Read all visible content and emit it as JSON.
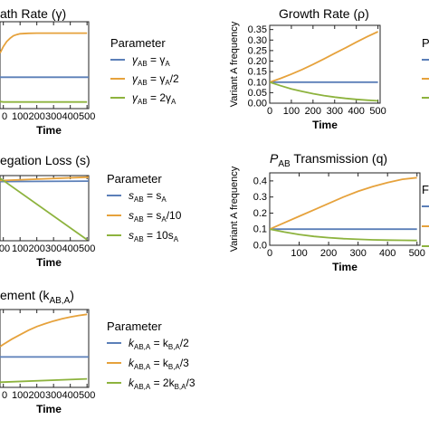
{
  "chart_data": [
    {
      "type": "line",
      "title_pre": "",
      "title": "ath Rate (γ)",
      "title_sub": "",
      "title_post": "",
      "xlabel": "Time",
      "ylabel": "",
      "xlim": [
        -20,
        510
      ],
      "ylim": [
        -0.05,
        1.0
      ],
      "xticks": [
        {
          "v": 0,
          "t": "0"
        },
        {
          "v": 100,
          "t": "100"
        },
        {
          "v": 200,
          "t": "200"
        },
        {
          "v": 300,
          "t": "300"
        },
        {
          "v": 400,
          "t": "400"
        },
        {
          "v": 500,
          "t": "500"
        }
      ],
      "yticks": [],
      "legend_title": "Parameter",
      "series": [
        {
          "color": "#5b7fb8",
          "label": [
            {
              "t": "γ",
              "s": "AB",
              "r": " = γ"
            },
            {
              "t": "",
              "s": "A",
              "r": ""
            }
          ],
          "x": [
            -20,
            510
          ],
          "y": [
            0.33,
            0.33
          ]
        },
        {
          "color": "#e6a23c",
          "label": [
            {
              "t": "γ",
              "s": "AB",
              "r": " = γ"
            },
            {
              "t": "",
              "s": "A",
              "r": "/2"
            }
          ],
          "x": [
            -20,
            0,
            20,
            40,
            60,
            80,
            100,
            150,
            200,
            300,
            400,
            500
          ],
          "y": [
            0.62,
            0.7,
            0.76,
            0.8,
            0.83,
            0.845,
            0.855,
            0.86,
            0.862,
            0.862,
            0.862,
            0.862
          ]
        },
        {
          "color": "#8db33e",
          "label": [
            {
              "t": "γ",
              "s": "AB",
              "r": " = 2γ"
            },
            {
              "t": "",
              "s": "A",
              "r": ""
            }
          ],
          "x": [
            -20,
            0,
            50,
            100,
            200,
            300,
            400,
            500
          ],
          "y": [
            0.035,
            0.03,
            0.03,
            0.03,
            0.03,
            0.03,
            0.03,
            0.03
          ]
        }
      ]
    },
    {
      "type": "line",
      "title_pre": "",
      "title": "Growth Rate (ρ)",
      "title_sub": "",
      "title_post": "",
      "xlabel": "Time",
      "ylabel": "Variant A frequency",
      "xlim": [
        0,
        510
      ],
      "ylim": [
        0,
        0.37
      ],
      "xticks": [
        {
          "v": 0,
          "t": "0"
        },
        {
          "v": 100,
          "t": "100"
        },
        {
          "v": 200,
          "t": "200"
        },
        {
          "v": 300,
          "t": "300"
        },
        {
          "v": 400,
          "t": "400"
        },
        {
          "v": 500,
          "t": "500"
        }
      ],
      "yticks": [
        {
          "v": 0.0,
          "t": "0.00"
        },
        {
          "v": 0.05,
          "t": "0.05"
        },
        {
          "v": 0.1,
          "t": "0.10"
        },
        {
          "v": 0.15,
          "t": "0.15"
        },
        {
          "v": 0.2,
          "t": "0.20"
        },
        {
          "v": 0.25,
          "t": "0.25"
        },
        {
          "v": 0.3,
          "t": "0.30"
        },
        {
          "v": 0.35,
          "t": "0.35"
        }
      ],
      "legend_title": "P",
      "series": [
        {
          "color": "#5b7fb8",
          "label": [],
          "x": [
            0,
            500
          ],
          "y": [
            0.1,
            0.1
          ]
        },
        {
          "color": "#e6a23c",
          "label": [],
          "x": [
            0,
            50,
            100,
            150,
            200,
            250,
            300,
            350,
            400,
            450,
            500
          ],
          "y": [
            0.1,
            0.118,
            0.138,
            0.16,
            0.184,
            0.21,
            0.237,
            0.263,
            0.29,
            0.316,
            0.34
          ]
        },
        {
          "color": "#8db33e",
          "label": [],
          "x": [
            0,
            50,
            100,
            150,
            200,
            250,
            300,
            350,
            400,
            450,
            500
          ],
          "y": [
            0.1,
            0.083,
            0.068,
            0.056,
            0.045,
            0.036,
            0.029,
            0.023,
            0.018,
            0.014,
            0.011
          ]
        }
      ]
    },
    {
      "type": "line",
      "title_pre": "",
      "title": "egation Loss (s)",
      "title_sub": "",
      "title_post": "",
      "xlabel": "Time",
      "ylabel": "",
      "xlim": [
        -20,
        510
      ],
      "ylim": [
        -0.3,
        1.0
      ],
      "xticks": [
        {
          "v": 0,
          "t": "00"
        },
        {
          "v": 100,
          "t": "100"
        },
        {
          "v": 200,
          "t": "200"
        },
        {
          "v": 300,
          "t": "300"
        },
        {
          "v": 400,
          "t": "400"
        },
        {
          "v": 500,
          "t": "500"
        }
      ],
      "yticks": [],
      "legend_title": "Parameter",
      "series": [
        {
          "color": "#5b7fb8",
          "label": [
            {
              "t": "s",
              "s": "AB",
              "r": " = s"
            },
            {
              "t": "",
              "s": "A",
              "r": ""
            }
          ],
          "x": [
            -20,
            510
          ],
          "y": [
            0.88,
            0.89
          ]
        },
        {
          "color": "#e6a23c",
          "label": [
            {
              "t": "s",
              "s": "AB",
              "r": " = s"
            },
            {
              "t": "",
              "s": "A",
              "r": "/10"
            }
          ],
          "x": [
            -20,
            510
          ],
          "y": [
            0.9,
            0.97
          ]
        },
        {
          "color": "#8db33e",
          "label": [
            {
              "t": "s",
              "s": "AB",
              "r": " = 10s"
            },
            {
              "t": "",
              "s": "A",
              "r": ""
            }
          ],
          "x": [
            -20,
            500
          ],
          "y": [
            0.95,
            -0.28
          ]
        }
      ]
    },
    {
      "type": "line",
      "title_pre": "P",
      "title": "",
      "title_sub": "AB",
      "title_post": " Transmission (q)",
      "xlabel": "Time",
      "ylabel": "Variant A frequency",
      "xlim": [
        0,
        510
      ],
      "ylim": [
        0,
        0.45
      ],
      "xticks": [
        {
          "v": 0,
          "t": "0"
        },
        {
          "v": 100,
          "t": "100"
        },
        {
          "v": 200,
          "t": "200"
        },
        {
          "v": 300,
          "t": "300"
        },
        {
          "v": 400,
          "t": "400"
        },
        {
          "v": 500,
          "t": "500"
        }
      ],
      "yticks": [
        {
          "v": 0.0,
          "t": "0.0"
        },
        {
          "v": 0.1,
          "t": "0.1"
        },
        {
          "v": 0.2,
          "t": "0.2"
        },
        {
          "v": 0.3,
          "t": "0.3"
        },
        {
          "v": 0.4,
          "t": "0.4"
        }
      ],
      "legend_title": "F",
      "series": [
        {
          "color": "#5b7fb8",
          "label": [],
          "x": [
            0,
            500
          ],
          "y": [
            0.1,
            0.1
          ]
        },
        {
          "color": "#e6a23c",
          "label": [],
          "x": [
            0,
            50,
            100,
            150,
            200,
            250,
            300,
            350,
            400,
            450,
            500
          ],
          "y": [
            0.1,
            0.14,
            0.18,
            0.22,
            0.26,
            0.3,
            0.335,
            0.365,
            0.39,
            0.41,
            0.42
          ]
        },
        {
          "color": "#8db33e",
          "label": [],
          "x": [
            0,
            50,
            100,
            150,
            200,
            250,
            300,
            350,
            400,
            450,
            500
          ],
          "y": [
            0.1,
            0.082,
            0.067,
            0.055,
            0.047,
            0.041,
            0.037,
            0.034,
            0.032,
            0.031,
            0.03
          ]
        }
      ]
    },
    {
      "type": "line",
      "title_pre": "",
      "title": "ement (k",
      "title_sub": "AB,A",
      "title_post": ")",
      "xlabel": "Time",
      "ylabel": "",
      "xlim": [
        -20,
        510
      ],
      "ylim": [
        -0.05,
        1.0
      ],
      "xticks": [
        {
          "v": 0,
          "t": "0"
        },
        {
          "v": 100,
          "t": "100"
        },
        {
          "v": 200,
          "t": "200"
        },
        {
          "v": 300,
          "t": "300"
        },
        {
          "v": 400,
          "t": "400"
        },
        {
          "v": 500,
          "t": "500"
        }
      ],
      "yticks": [],
      "legend_title": "Parameter",
      "series": [
        {
          "color": "#5b7fb8",
          "label": [
            {
              "t": "k",
              "s": "AB,A",
              "r": " = k"
            },
            {
              "t": "",
              "s": "B,A",
              "r": "/2"
            }
          ],
          "x": [
            -20,
            510
          ],
          "y": [
            0.36,
            0.36
          ]
        },
        {
          "color": "#e6a23c",
          "label": [
            {
              "t": "k",
              "s": "AB,A",
              "r": " = k"
            },
            {
              "t": "",
              "s": "B,A",
              "r": "/3"
            }
          ],
          "x": [
            -20,
            0,
            50,
            100,
            150,
            200,
            250,
            300,
            350,
            400,
            450,
            500
          ],
          "y": [
            0.5,
            0.53,
            0.6,
            0.66,
            0.72,
            0.77,
            0.81,
            0.845,
            0.875,
            0.9,
            0.92,
            0.935
          ]
        },
        {
          "color": "#8db33e",
          "label": [
            {
              "t": "k",
              "s": "AB,A",
              "r": " = 2k"
            },
            {
              "t": "",
              "s": "B,A",
              "r": "/3"
            }
          ],
          "x": [
            -20,
            500
          ],
          "y": [
            0.02,
            0.065
          ]
        }
      ]
    }
  ]
}
